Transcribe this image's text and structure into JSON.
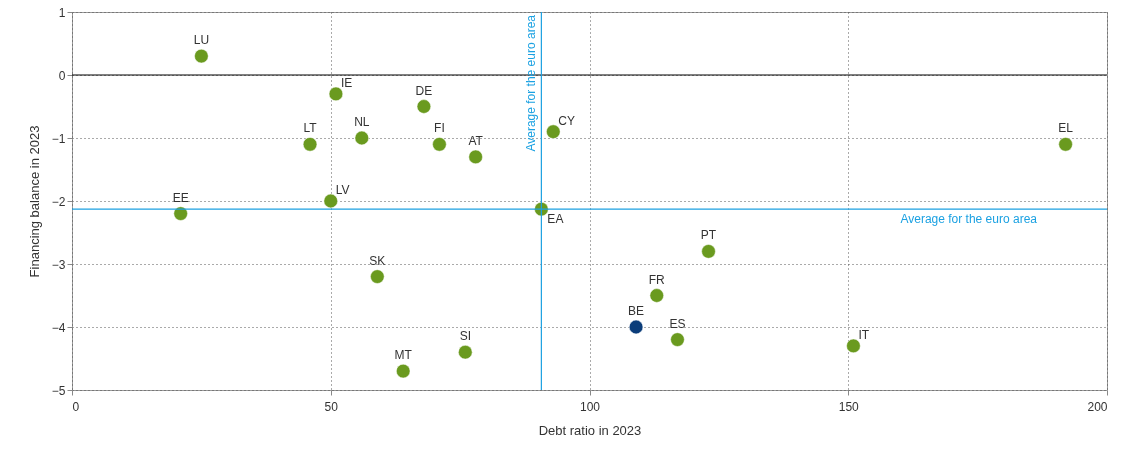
{
  "chart_data": {
    "type": "scatter",
    "xlabel": "Debt ratio in 2023",
    "ylabel": "Financing balance in 2023",
    "x": [
      25,
      51,
      68,
      46,
      56,
      71,
      78,
      93,
      192,
      21,
      50,
      90.7,
      59,
      123,
      113,
      109,
      117,
      151,
      76,
      64
    ],
    "values": [
      0.3,
      -0.3,
      -0.5,
      -1.1,
      -1.0,
      -1.1,
      -1.3,
      -0.9,
      -1.1,
      -2.2,
      -2.0,
      -2.13,
      -3.2,
      -2.8,
      -3.5,
      -4.0,
      -4.2,
      -4.3,
      -4.4,
      -4.7
    ],
    "colors": [
      "#6a9a1f",
      "#6a9a1f",
      "#6a9a1f",
      "#6a9a1f",
      "#6a9a1f",
      "#6a9a1f",
      "#6a9a1f",
      "#6a9a1f",
      "#6a9a1f",
      "#6a9a1f",
      "#6a9a1f",
      "#6a9a1f",
      "#6a9a1f",
      "#6a9a1f",
      "#6a9a1f",
      "#0b3d7a",
      "#6a9a1f",
      "#6a9a1f",
      "#6a9a1f",
      "#6a9a1f"
    ],
    "annotations": [
      {
        "text": "LU",
        "x": 25,
        "y": 0.3
      },
      {
        "text": "IE",
        "x": 51,
        "y": -0.3
      },
      {
        "text": "DE",
        "x": 68,
        "y": -0.5
      },
      {
        "text": "LT",
        "x": 46,
        "y": -1.1
      },
      {
        "text": "NL",
        "x": 56,
        "y": -1.0
      },
      {
        "text": "FI",
        "x": 71,
        "y": -1.1
      },
      {
        "text": "AT",
        "x": 78,
        "y": -1.3
      },
      {
        "text": "CY",
        "x": 93,
        "y": -0.9
      },
      {
        "text": "EL",
        "x": 192,
        "y": -1.1
      },
      {
        "text": "EE",
        "x": 21,
        "y": -2.2
      },
      {
        "text": "LV",
        "x": 50,
        "y": -2.0
      },
      {
        "text": "EA",
        "x": 90.7,
        "y": -2.13
      },
      {
        "text": "SK",
        "x": 59,
        "y": -3.2
      },
      {
        "text": "PT",
        "x": 123,
        "y": -2.8
      },
      {
        "text": "FR",
        "x": 113,
        "y": -3.5
      },
      {
        "text": "BE",
        "x": 109,
        "y": -4.0
      },
      {
        "text": "ES",
        "x": 117,
        "y": -4.2
      },
      {
        "text": "IT",
        "x": 151,
        "y": -4.3
      },
      {
        "text": "SI",
        "x": 76,
        "y": -4.4
      },
      {
        "text": "MT",
        "x": 64,
        "y": -4.7
      }
    ],
    "ref_lines": [
      {
        "axis": "y",
        "value": 0,
        "color": "#000000"
      },
      {
        "axis": "x",
        "value": 90.7,
        "label": "Average for the euro area",
        "color": "#1ba1e2"
      },
      {
        "axis": "y",
        "value": -2.13,
        "label": "Average for the euro area",
        "color": "#1ba1e2"
      }
    ],
    "xlim": [
      0,
      200
    ],
    "xticks": [
      0,
      50,
      100,
      150,
      200
    ],
    "ylim": [
      -5,
      1
    ],
    "yticks": [
      -5,
      -4,
      -3,
      -2,
      -1,
      0,
      1
    ],
    "grid": true,
    "marker": "circle"
  }
}
